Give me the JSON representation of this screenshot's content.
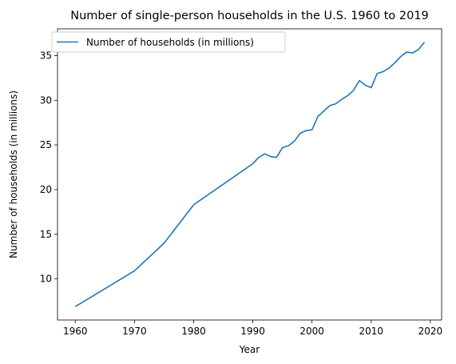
{
  "chart_data": {
    "type": "line",
    "title": "Number of single-person households in the U.S. 1960 to 2019",
    "xlabel": "Year",
    "ylabel": "Number of households (in millions)",
    "xlim": [
      1957,
      2021.9
    ],
    "ylim": [
      5.4,
      38.0
    ],
    "xticks": [
      1960,
      1970,
      1980,
      1990,
      2000,
      2010,
      2020
    ],
    "yticks": [
      10,
      15,
      20,
      25,
      30,
      35
    ],
    "legend": {
      "position": "top-left",
      "entries": [
        "Number of households (in millions)"
      ]
    },
    "grid": false,
    "colors": {
      "series": "#1f77b4"
    },
    "series": [
      {
        "name": "Number of households (in millions)",
        "x": [
          1960,
          1970,
          1975,
          1980,
          1985,
          1990,
          1991,
          1992,
          1993,
          1994,
          1995,
          1996,
          1997,
          1998,
          1999,
          2000,
          2001,
          2002,
          2003,
          2004,
          2005,
          2006,
          2007,
          2008,
          2009,
          2010,
          2011,
          2012,
          2013,
          2014,
          2015,
          2016,
          2017,
          2018,
          2019
        ],
        "values": [
          6.9,
          10.9,
          14.0,
          18.3,
          20.6,
          22.9,
          23.6,
          24.0,
          23.7,
          23.6,
          24.7,
          24.9,
          25.4,
          26.3,
          26.6,
          26.7,
          28.2,
          28.8,
          29.4,
          29.6,
          30.1,
          30.5,
          31.1,
          32.2,
          31.7,
          31.4,
          33.0,
          33.2,
          33.6,
          34.2,
          34.9,
          35.4,
          35.3,
          35.7,
          36.5
        ]
      }
    ]
  }
}
